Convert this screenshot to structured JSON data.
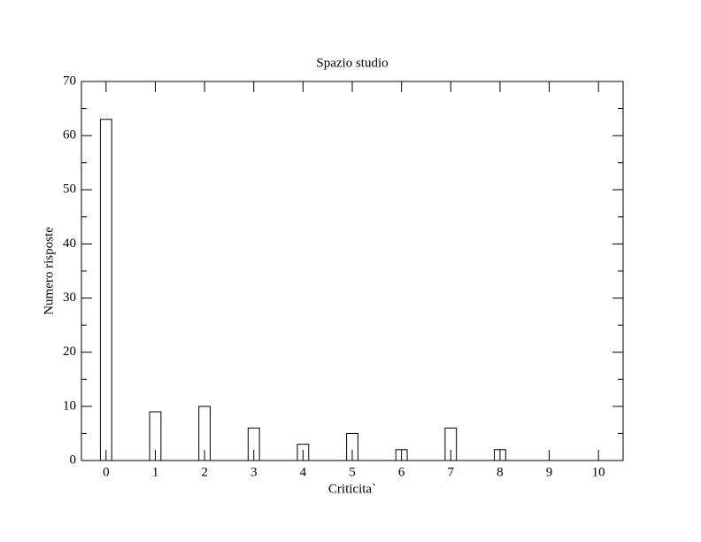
{
  "chart_data": {
    "type": "bar",
    "title": "Spazio studio",
    "x_label": "Criticita`",
    "y_label": "Numero risposte",
    "x": [
      0,
      1,
      2,
      3,
      4,
      5,
      6,
      7,
      8,
      9,
      10
    ],
    "values": [
      63,
      9,
      10,
      6,
      3,
      5,
      2,
      6,
      2,
      0,
      0
    ],
    "color": "#000000",
    "xlim": [
      -0.5,
      10.5
    ],
    "xticks": [
      0,
      1,
      2,
      3,
      4,
      5,
      6,
      7,
      8,
      9,
      10
    ],
    "ylim": [
      0,
      70
    ],
    "yticks": [
      0,
      10,
      20,
      30,
      40,
      50,
      60,
      70
    ],
    "yminorticks": [
      5,
      15,
      25,
      35,
      45,
      55,
      65
    ],
    "grid": false
  }
}
